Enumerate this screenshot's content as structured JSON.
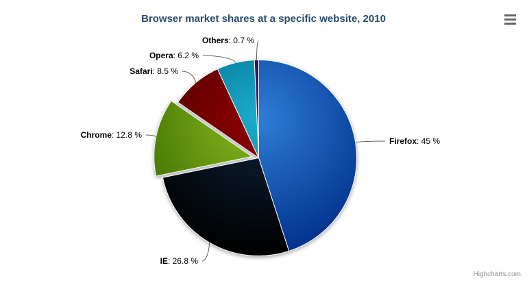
{
  "chart_data": {
    "type": "pie",
    "title": "Browser market shares at a specific website, 2010",
    "legend_position": "none",
    "label_format": "{name}: {value} %",
    "slices": [
      {
        "name": "Firefox",
        "value": 45,
        "value_label": "45 %",
        "color": "#2f7ed8",
        "sliced": false
      },
      {
        "name": "IE",
        "value": 26.8,
        "value_label": "26.8 %",
        "color": "#0d233a",
        "sliced": false
      },
      {
        "name": "Chrome",
        "value": 12.8,
        "value_label": "12.8 %",
        "color": "#8bbc21",
        "sliced": true
      },
      {
        "name": "Safari",
        "value": 8.5,
        "value_label": "8.5 %",
        "color": "#910000",
        "sliced": false
      },
      {
        "name": "Opera",
        "value": 6.2,
        "value_label": "6.2 %",
        "color": "#1aadce",
        "sliced": false
      },
      {
        "name": "Others",
        "value": 0.7,
        "value_label": "0.7 %",
        "color": "#492970",
        "sliced": false
      }
    ]
  },
  "colors": {
    "title": "#274b6d",
    "connector": "#606060",
    "label_text": "#000000",
    "menu_icon": "#666666",
    "credits_text": "#909090",
    "background": "#ffffff",
    "slice_border": "#ffffff"
  },
  "export_menu": {
    "icon": "hamburger-icon"
  },
  "credits": {
    "label": "Highcharts.com"
  }
}
